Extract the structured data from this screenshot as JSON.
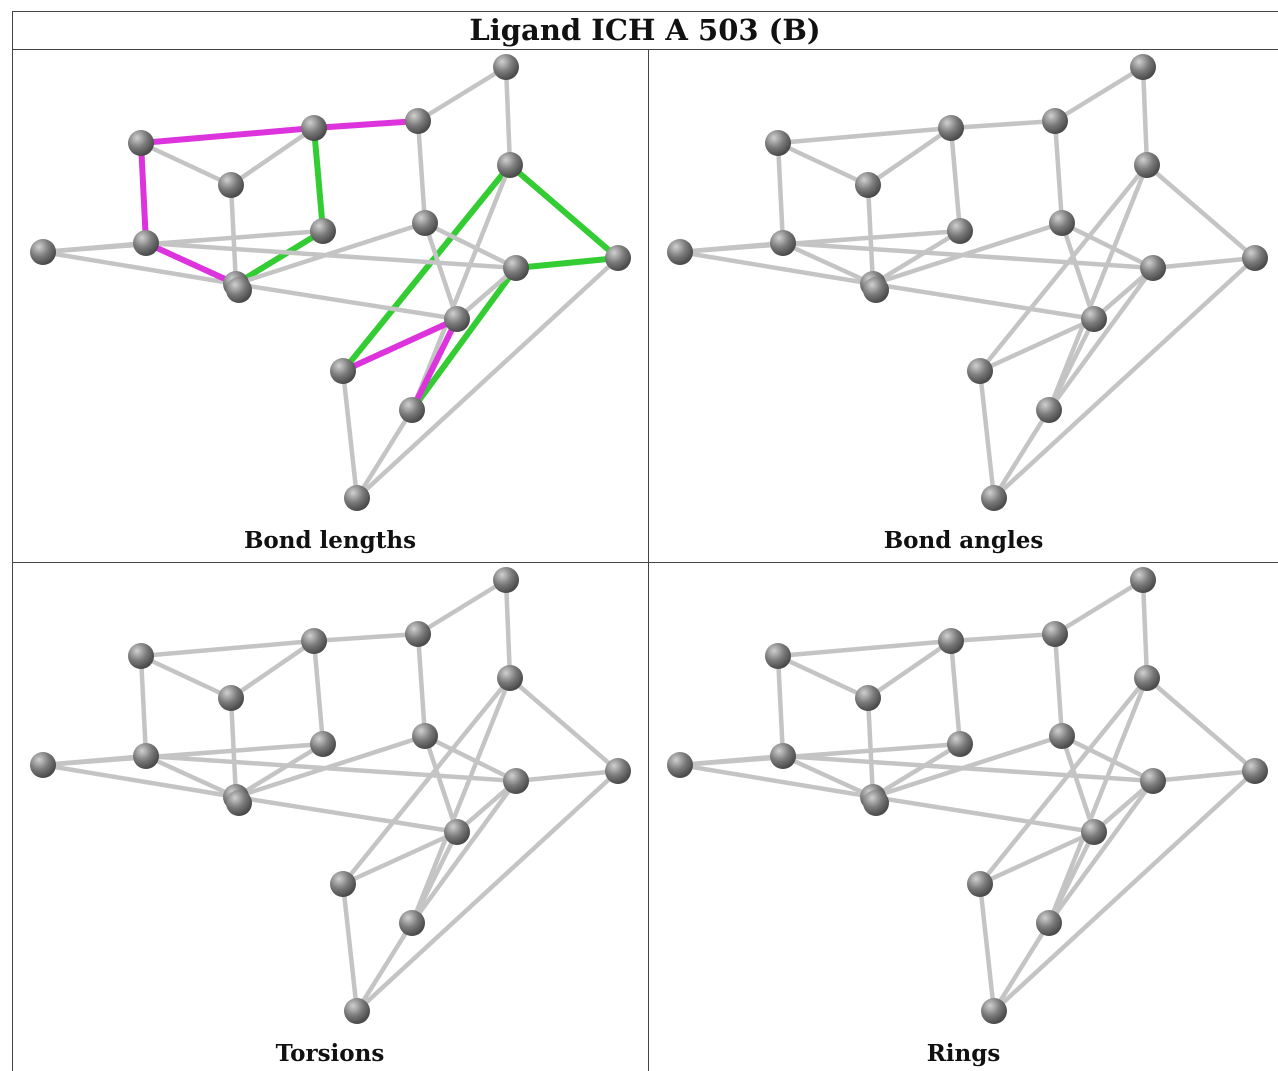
{
  "title": "Ligand ICH A 503 (B)",
  "panels": [
    {
      "label": "Bond lengths",
      "highlight": true
    },
    {
      "label": "Bond angles",
      "highlight": false
    },
    {
      "label": "Torsions",
      "highlight": false
    },
    {
      "label": "Rings",
      "highlight": false
    }
  ],
  "colors": {
    "atom": "#7a7a7a",
    "bond": "#c4c4c4",
    "highlight_green": "#33cc33",
    "highlight_magenta": "#dd33dd"
  }
}
